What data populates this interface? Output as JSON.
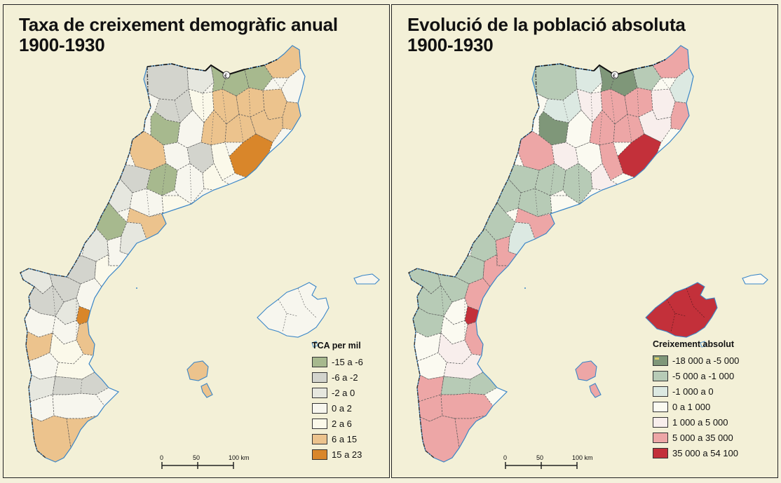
{
  "colors": {
    "sea": "#f3f0d7",
    "coast": "#3a86c8",
    "border": "#333333"
  },
  "left_map": {
    "title_line1": "Taxa de creixement demogràfic anual",
    "title_line2": "1900-1930",
    "legend_title": "TCA per mil",
    "legend": [
      {
        "label": "-15 a -6",
        "color": "#a7b98e"
      },
      {
        "label": "-6 a -2",
        "color": "#d3d4cd"
      },
      {
        "label": "-2 a 0",
        "color": "#e6e7df"
      },
      {
        "label": "0 a 2",
        "color": "#f7f6ee"
      },
      {
        "label": "2 a 6",
        "color": "#fbf9ea"
      },
      {
        "label": "6 a 15",
        "color": "#ecc38d"
      },
      {
        "label": "15 a 23",
        "color": "#d9862a"
      }
    ],
    "scale": {
      "l0": "0",
      "l1": "50",
      "l2": "100 km"
    }
  },
  "right_map": {
    "title_line1": "Evolució de la població absoluta",
    "title_line2": "1900-1930",
    "legend_title": "Creixement absolut",
    "legend": [
      {
        "label": "-18 000 a -5 000",
        "color": "#7f9779"
      },
      {
        "label": "-5 000 a -1 000",
        "color": "#b7cbb6"
      },
      {
        "label": "-1 000 a 0",
        "color": "#dce9e2"
      },
      {
        "label": "0 a 1 000",
        "color": "#fbfaf1"
      },
      {
        "label": "1 000 a 5 000",
        "color": "#f8eeec"
      },
      {
        "label": "5 000 a 35 000",
        "color": "#eda6a6"
      },
      {
        "label": "35 000 a 54 100",
        "color": "#c3303a"
      }
    ],
    "scale": {
      "l0": "0",
      "l1": "50",
      "l2": "100 km"
    }
  },
  "andorra_symbol": "€"
}
